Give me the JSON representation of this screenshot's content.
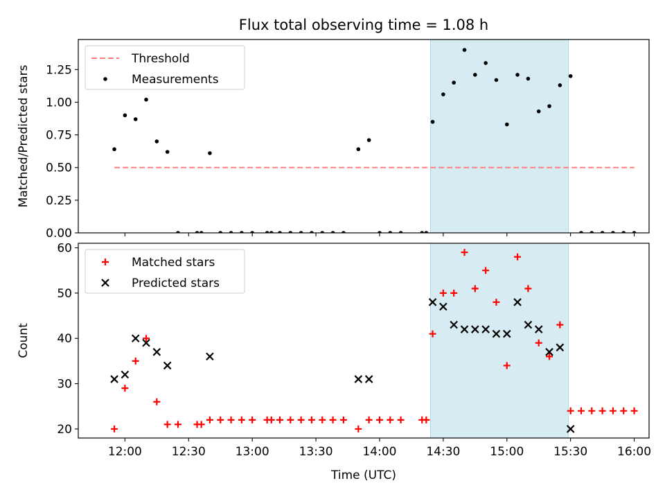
{
  "figure": {
    "title": "Flux total observing time = 1.08 h"
  },
  "chart_data": [
    {
      "type": "scatter",
      "title": "Flux total observing time = 1.08 h",
      "xlabel": "",
      "ylabel": "Matched/Predicted stars",
      "xlim": [
        "11:38",
        "16:07"
      ],
      "ylim": [
        0,
        1.48
      ],
      "yticks": [
        "0.00",
        "0.25",
        "0.50",
        "0.75",
        "1.00",
        "1.25"
      ],
      "shaded_interval": {
        "start": "14:24",
        "end": "15:29",
        "color": "#add8e6"
      },
      "legend": {
        "position": "top-left",
        "entries": [
          "Threshold",
          "Measurements"
        ]
      },
      "grid": false,
      "series": [
        {
          "name": "Threshold",
          "style": "dashed-line",
          "color": "#ff7f7f",
          "points": [
            [
              "11:55",
              0.5
            ],
            [
              "16:00",
              0.5
            ]
          ]
        },
        {
          "name": "Measurements",
          "style": "dot",
          "color": "#000000",
          "points": [
            [
              "11:55",
              0.64
            ],
            [
              "12:00",
              0.9
            ],
            [
              "12:05",
              0.87
            ],
            [
              "12:10",
              1.02
            ],
            [
              "12:15",
              0.7
            ],
            [
              "12:20",
              0.62
            ],
            [
              "12:25",
              0
            ],
            [
              "12:34",
              0
            ],
            [
              "12:36",
              0
            ],
            [
              "12:40",
              0.61
            ],
            [
              "12:45",
              0
            ],
            [
              "12:50",
              0
            ],
            [
              "12:55",
              0
            ],
            [
              "13:00",
              0
            ],
            [
              "13:07",
              0
            ],
            [
              "13:09",
              0
            ],
            [
              "13:13",
              0
            ],
            [
              "13:18",
              0
            ],
            [
              "13:23",
              0
            ],
            [
              "13:28",
              0
            ],
            [
              "13:33",
              0
            ],
            [
              "13:38",
              0
            ],
            [
              "13:43",
              0
            ],
            [
              "13:50",
              0.64
            ],
            [
              "13:55",
              0.71
            ],
            [
              "14:00",
              0
            ],
            [
              "14:05",
              0
            ],
            [
              "14:10",
              0
            ],
            [
              "14:20",
              0
            ],
            [
              "14:22",
              0
            ],
            [
              "14:25",
              0.85
            ],
            [
              "14:30",
              1.06
            ],
            [
              "14:35",
              1.15
            ],
            [
              "14:40",
              1.4
            ],
            [
              "14:45",
              1.21
            ],
            [
              "14:50",
              1.3
            ],
            [
              "14:55",
              1.17
            ],
            [
              "15:00",
              0.83
            ],
            [
              "15:05",
              1.21
            ],
            [
              "15:10",
              1.18
            ],
            [
              "15:15",
              0.93
            ],
            [
              "15:20",
              0.97
            ],
            [
              "15:25",
              1.13
            ],
            [
              "15:30",
              1.2
            ],
            [
              "15:35",
              0
            ],
            [
              "15:40",
              0
            ],
            [
              "15:45",
              0
            ],
            [
              "15:50",
              0
            ],
            [
              "15:55",
              0
            ],
            [
              "16:00",
              0
            ]
          ]
        }
      ]
    },
    {
      "type": "scatter",
      "title": "",
      "xlabel": "Time (UTC)",
      "ylabel": "Count",
      "xlim": [
        "11:38",
        "16:07"
      ],
      "ylim": [
        18,
        61
      ],
      "xticks": [
        "12:00",
        "12:30",
        "13:00",
        "13:30",
        "14:00",
        "14:30",
        "15:00",
        "15:30",
        "16:00"
      ],
      "yticks": [
        "20",
        "30",
        "40",
        "50",
        "60"
      ],
      "shaded_interval": {
        "start": "14:24",
        "end": "15:29",
        "color": "#add8e6"
      },
      "legend": {
        "position": "top-left",
        "entries": [
          "Matched stars",
          "Predicted stars"
        ]
      },
      "grid": false,
      "series": [
        {
          "name": "Matched stars",
          "style": "plus",
          "color": "#ff0000",
          "points": [
            [
              "11:55",
              20
            ],
            [
              "12:00",
              29
            ],
            [
              "12:05",
              35
            ],
            [
              "12:10",
              40
            ],
            [
              "12:15",
              26
            ],
            [
              "12:20",
              21
            ],
            [
              "12:25",
              21
            ],
            [
              "12:34",
              21
            ],
            [
              "12:36",
              21
            ],
            [
              "12:40",
              22
            ],
            [
              "12:45",
              22
            ],
            [
              "12:50",
              22
            ],
            [
              "12:55",
              22
            ],
            [
              "13:00",
              22
            ],
            [
              "13:07",
              22
            ],
            [
              "13:09",
              22
            ],
            [
              "13:13",
              22
            ],
            [
              "13:18",
              22
            ],
            [
              "13:23",
              22
            ],
            [
              "13:28",
              22
            ],
            [
              "13:33",
              22
            ],
            [
              "13:38",
              22
            ],
            [
              "13:43",
              22
            ],
            [
              "13:50",
              20
            ],
            [
              "13:55",
              22
            ],
            [
              "14:00",
              22
            ],
            [
              "14:05",
              22
            ],
            [
              "14:10",
              22
            ],
            [
              "14:20",
              22
            ],
            [
              "14:22",
              22
            ],
            [
              "14:25",
              41
            ],
            [
              "14:30",
              50
            ],
            [
              "14:35",
              50
            ],
            [
              "14:40",
              59
            ],
            [
              "14:45",
              51
            ],
            [
              "14:50",
              55
            ],
            [
              "14:55",
              48
            ],
            [
              "15:00",
              34
            ],
            [
              "15:05",
              58
            ],
            [
              "15:10",
              51
            ],
            [
              "15:15",
              39
            ],
            [
              "15:20",
              36
            ],
            [
              "15:25",
              43
            ],
            [
              "15:30",
              24
            ],
            [
              "15:35",
              24
            ],
            [
              "15:40",
              24
            ],
            [
              "15:45",
              24
            ],
            [
              "15:50",
              24
            ],
            [
              "15:55",
              24
            ],
            [
              "16:00",
              24
            ]
          ]
        },
        {
          "name": "Predicted stars",
          "style": "x",
          "color": "#000000",
          "points": [
            [
              "11:55",
              31
            ],
            [
              "12:00",
              32
            ],
            [
              "12:05",
              40
            ],
            [
              "12:10",
              39
            ],
            [
              "12:15",
              37
            ],
            [
              "12:20",
              34
            ],
            [
              "12:40",
              36
            ],
            [
              "13:50",
              31
            ],
            [
              "13:55",
              31
            ],
            [
              "14:25",
              48
            ],
            [
              "14:30",
              47
            ],
            [
              "14:35",
              43
            ],
            [
              "14:40",
              42
            ],
            [
              "14:45",
              42
            ],
            [
              "14:50",
              42
            ],
            [
              "14:55",
              41
            ],
            [
              "15:00",
              41
            ],
            [
              "15:05",
              48
            ],
            [
              "15:10",
              43
            ],
            [
              "15:15",
              42
            ],
            [
              "15:20",
              37
            ],
            [
              "15:25",
              38
            ],
            [
              "15:30",
              20
            ]
          ]
        }
      ]
    }
  ]
}
